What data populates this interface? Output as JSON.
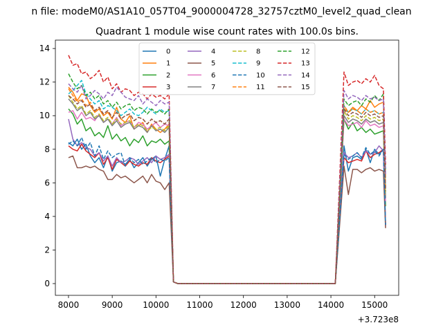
{
  "chart_data": {
    "type": "line",
    "suptitle": "n file: modeM0/AS1A10_057T04_9000004728_32757cztM0_level2_quad_clean",
    "title": "Quadrant 1 module wise count rates with 100.0s bins.",
    "xlabel": "",
    "ylabel": "",
    "x_offset_label": "+3.723e8",
    "xlim": [
      7700,
      15550
    ],
    "ylim": [
      -0.7,
      14.5
    ],
    "xticks": [
      8000,
      9000,
      10000,
      11000,
      12000,
      13000,
      14000,
      15000
    ],
    "yticks": [
      0,
      2,
      4,
      6,
      8,
      10,
      12,
      14
    ],
    "legend_position": "upper-center",
    "legend_columns": 4,
    "grid": false,
    "segment1": {
      "start": 8000,
      "end": 10300,
      "drop_end": 10400
    },
    "segment2": {
      "rise_start": 14100,
      "start": 14300,
      "end": 15200
    },
    "series": [
      {
        "name": "0",
        "color": "#1f77b4",
        "dash": "solid",
        "seg1": [
          8.4,
          8.2,
          8.6,
          8.0,
          8.3,
          7.6,
          7.2,
          7.5,
          6.9,
          7.6,
          6.7,
          7.2,
          7.3,
          7.1,
          7.4,
          6.9,
          7.2,
          7.5,
          7.0,
          7.4,
          7.6,
          6.4,
          7.4,
          8.2
        ],
        "seg2": [
          8.2,
          6.7,
          7.5,
          7.6,
          7.4,
          8.0,
          7.2,
          8.0,
          7.7,
          8.0
        ]
      },
      {
        "name": "1",
        "color": "#ff7f0e",
        "dash": "solid",
        "seg1": [
          11.7,
          11.4,
          10.9,
          11.3,
          11.2,
          10.6,
          10.2,
          10.4,
          10.0,
          10.2,
          9.8,
          10.5,
          9.8,
          9.6,
          10.0,
          9.2,
          9.4,
          9.6,
          9.0,
          9.5,
          9.2,
          9.0,
          9.2,
          9.5
        ],
        "seg2": [
          10.4,
          10.2,
          10.5,
          10.3,
          10.6,
          10.4,
          10.9,
          10.5,
          10.7,
          10.8
        ]
      },
      {
        "name": "2",
        "color": "#2ca02c",
        "dash": "solid",
        "seg1": [
          10.4,
          10.1,
          9.5,
          9.8,
          9.1,
          9.3,
          8.8,
          9.0,
          8.7,
          9.4,
          8.6,
          8.9,
          8.5,
          8.7,
          8.2,
          8.6,
          8.4,
          8.8,
          8.2,
          8.5,
          8.4,
          8.6,
          8.3,
          8.5
        ],
        "seg2": [
          9.8,
          9.2,
          9.6,
          9.1,
          9.3,
          9.0,
          9.2,
          8.9,
          9.0,
          9.1
        ]
      },
      {
        "name": "3",
        "color": "#d62728",
        "dash": "solid",
        "seg1": [
          8.2,
          8.0,
          7.9,
          8.3,
          7.9,
          7.7,
          7.5,
          7.8,
          7.1,
          7.5,
          6.8,
          7.4,
          7.2,
          7.0,
          7.3,
          7.1,
          7.0,
          7.2,
          7.1,
          7.5,
          7.3,
          7.2,
          7.4,
          7.6
        ],
        "seg2": [
          7.5,
          7.2,
          7.3,
          7.4,
          7.3,
          7.9,
          7.5,
          7.7,
          7.8,
          8.0
        ]
      },
      {
        "name": "4",
        "color": "#9467bd",
        "dash": "solid",
        "seg1": [
          9.8,
          8.6,
          8.2,
          8.4,
          8.1,
          8.0,
          7.6,
          7.8,
          7.3,
          7.6,
          7.0,
          7.5,
          7.2,
          7.3,
          7.5,
          7.4,
          7.1,
          7.3,
          7.5,
          7.2,
          7.6,
          7.4,
          7.5,
          7.7
        ],
        "seg2": [
          7.8,
          7.5,
          7.6,
          7.8,
          7.5,
          7.9,
          7.7,
          7.8,
          8.2,
          7.9
        ]
      },
      {
        "name": "5",
        "color": "#8c564b",
        "dash": "solid",
        "seg1": [
          7.5,
          7.6,
          6.9,
          6.9,
          7.0,
          6.9,
          7.0,
          6.8,
          6.7,
          6.2,
          6.2,
          6.5,
          6.3,
          6.4,
          6.2,
          6.0,
          6.2,
          6.4,
          6.0,
          6.5,
          6.1,
          6.0,
          5.6,
          6.0
        ],
        "seg2": [
          7.0,
          5.3,
          6.8,
          6.8,
          6.6,
          6.8,
          6.9,
          6.7,
          6.8,
          6.7
        ]
      },
      {
        "name": "6",
        "color": "#e377c2",
        "dash": "solid",
        "seg1": [
          10.2,
          10.3,
          9.8,
          10.2,
          9.8,
          9.9,
          9.7,
          10.1,
          9.6,
          9.8,
          9.5,
          9.9,
          9.4,
          9.6,
          9.7,
          9.3,
          9.6,
          9.5,
          9.2,
          9.4,
          9.6,
          9.3,
          9.5,
          9.4
        ],
        "seg2": [
          9.8,
          9.4,
          9.5,
          9.6,
          9.3,
          9.7,
          9.4,
          9.5,
          9.3,
          9.4
        ]
      },
      {
        "name": "7",
        "color": "#7f7f7f",
        "dash": "solid",
        "seg1": [
          11.0,
          10.7,
          10.3,
          10.5,
          10.0,
          10.2,
          9.8,
          10.0,
          9.6,
          9.8,
          9.4,
          9.7,
          9.3,
          9.5,
          9.6,
          9.2,
          9.4,
          9.3,
          9.0,
          9.4,
          9.1,
          9.2,
          9.0,
          9.3
        ],
        "seg2": [
          10.0,
          9.6,
          9.8,
          9.7,
          9.5,
          9.8,
          9.6,
          9.7,
          9.5,
          9.6
        ]
      },
      {
        "name": "8",
        "color": "#bcbd22",
        "dash": "dashed",
        "seg1": [
          11.2,
          10.8,
          10.4,
          10.6,
          10.1,
          10.3,
          9.9,
          10.1,
          9.7,
          9.9,
          9.5,
          9.8,
          9.5,
          9.6,
          9.7,
          9.3,
          9.5,
          9.4,
          9.1,
          9.3,
          9.2,
          9.3,
          9.1,
          9.4
        ],
        "seg2": [
          10.3,
          9.8,
          10.0,
          9.9,
          9.7,
          10.0,
          9.8,
          9.9,
          9.7,
          9.8
        ]
      },
      {
        "name": "9",
        "color": "#17becf",
        "dash": "dashed",
        "seg1": [
          11.3,
          11.5,
          11.8,
          12.1,
          11.3,
          11.0,
          10.7,
          10.9,
          10.4,
          10.6,
          10.5,
          10.3,
          10.0,
          10.2,
          10.4,
          10.1,
          10.0,
          10.2,
          10.5,
          10.3,
          10.1,
          10.4,
          10.2,
          10.3
        ],
        "seg2": [
          10.6,
          10.2,
          10.4,
          10.3,
          10.1,
          10.4,
          10.2,
          10.3,
          10.1,
          10.2
        ]
      },
      {
        "name": "10",
        "color": "#1f77b4",
        "dash": "dashed",
        "seg1": [
          8.3,
          8.5,
          8.2,
          8.7,
          8.0,
          8.4,
          7.6,
          8.2,
          7.4,
          7.9,
          7.5,
          7.7,
          7.8,
          7.0,
          7.5,
          7.2,
          7.4,
          7.1,
          7.3,
          7.5,
          7.2,
          7.4,
          7.3,
          7.5
        ],
        "seg2": [
          7.7,
          7.4,
          7.6,
          7.8,
          7.5,
          8.1,
          7.7,
          7.9,
          7.6,
          8.0
        ]
      },
      {
        "name": "11",
        "color": "#ff7f0e",
        "dash": "dashed",
        "seg1": [
          11.6,
          11.2,
          10.8,
          11.0,
          10.6,
          10.8,
          10.3,
          10.5,
          10.1,
          10.3,
          9.9,
          10.2,
          9.8,
          10.0,
          10.1,
          9.7,
          9.9,
          9.8,
          9.5,
          9.8,
          9.6,
          9.7,
          9.5,
          9.8
        ],
        "seg2": [
          10.6,
          10.2,
          10.4,
          10.3,
          10.1,
          10.4,
          10.2,
          10.3,
          10.1,
          10.2
        ]
      },
      {
        "name": "12",
        "color": "#2ca02c",
        "dash": "dashed",
        "seg1": [
          12.5,
          12.0,
          11.6,
          11.8,
          11.2,
          11.4,
          11.0,
          11.2,
          10.7,
          10.9,
          10.5,
          10.8,
          10.4,
          10.6,
          10.7,
          10.3,
          10.5,
          10.4,
          10.1,
          10.4,
          10.2,
          10.3,
          10.1,
          10.4
        ],
        "seg2": [
          11.0,
          10.6,
          10.8,
          10.9,
          10.6,
          11.0,
          10.8,
          11.2,
          10.9,
          11.3
        ]
      },
      {
        "name": "13",
        "color": "#d62728",
        "dash": "dashed",
        "seg1": [
          13.6,
          13.0,
          13.1,
          12.5,
          12.6,
          12.2,
          12.4,
          12.7,
          12.0,
          12.3,
          11.6,
          11.9,
          11.4,
          11.6,
          11.5,
          11.2,
          11.4,
          11.3,
          11.0,
          11.3,
          11.1,
          11.2,
          11.0,
          11.3
        ],
        "seg2": [
          12.6,
          11.8,
          12.0,
          12.1,
          11.9,
          12.2,
          12.0,
          12.4,
          11.8,
          11.6
        ]
      },
      {
        "name": "14",
        "color": "#9467bd",
        "dash": "dashed",
        "seg1": [
          11.9,
          11.6,
          11.4,
          11.8,
          11.0,
          11.2,
          11.5,
          11.3,
          11.0,
          11.4,
          11.2,
          11.7,
          11.4,
          11.1,
          11.0,
          10.9,
          11.2,
          10.7,
          11.0,
          10.8,
          10.6,
          10.9,
          10.7,
          10.8
        ],
        "seg2": [
          11.5,
          11.0,
          11.2,
          11.1,
          10.9,
          11.2,
          11.0,
          11.1,
          10.9,
          11.0
        ]
      },
      {
        "name": "15",
        "color": "#8c564b",
        "dash": "dashed",
        "seg1": [
          11.2,
          11.0,
          10.7,
          10.9,
          10.5,
          10.7,
          10.3,
          10.5,
          10.1,
          10.3,
          9.9,
          10.2,
          9.8,
          10.0,
          10.1,
          9.7,
          9.9,
          9.8,
          9.5,
          9.8,
          9.6,
          9.7,
          9.5,
          9.8
        ],
        "seg2": [
          10.4,
          10.0,
          10.2,
          10.1,
          9.9,
          10.2,
          10.0,
          10.1,
          9.9,
          10.0
        ]
      }
    ]
  }
}
